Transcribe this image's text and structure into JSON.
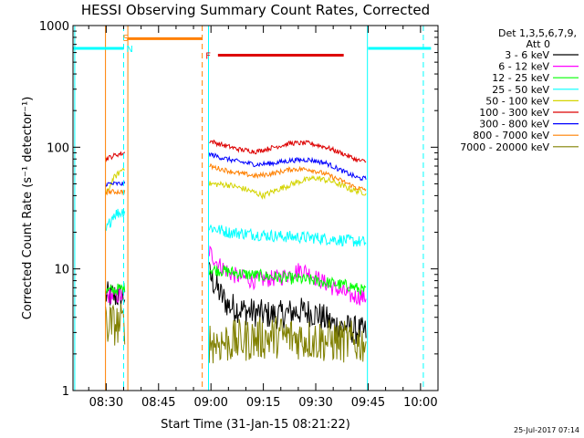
{
  "chart_data": {
    "type": "line",
    "title": "HESSI Observing Summary Count Rates, Corrected",
    "xlabel": "Start Time (31-Jan-15 08:21:22)",
    "ylabel": "Corrected Count Rate (s⁻¹ detector⁻¹)",
    "y_scale": "log",
    "ylim": [
      1,
      1000
    ],
    "xlim_minutes_after_0830": [
      -9.5,
      95
    ],
    "y_tick_labels": [
      "1",
      "10",
      "100",
      "1000"
    ],
    "x_tick_labels": [
      "08:30",
      "08:45",
      "09:00",
      "09:15",
      "09:30",
      "09:45",
      "10:00"
    ],
    "legend": {
      "position": "top-right",
      "header_lines": [
        "Det 1,3,5,6,7,9,",
        "Att 0"
      ],
      "entries": [
        {
          "label": "3 - 6 keV",
          "color": "#000000"
        },
        {
          "label": "6 - 12 keV",
          "color": "#ff00ff"
        },
        {
          "label": "12 - 25 keV",
          "color": "#00ff00"
        },
        {
          "label": "25 - 50 keV",
          "color": "#00ffff"
        },
        {
          "label": "50 - 100 keV",
          "color": "#d4d400"
        },
        {
          "label": "100 - 300 keV",
          "color": "#dd0000"
        },
        {
          "label": "300 - 800 keV",
          "color": "#0000ff"
        },
        {
          "label": "800 - 7000 keV",
          "color": "#ff8000"
        },
        {
          "label": "7000 - 20000 keV",
          "color": "#808000"
        }
      ]
    },
    "segment_1_x_minutes": [
      -0.2,
      5.5
    ],
    "segment_2_x_minutes": [
      29.5,
      74.5
    ],
    "series": [
      {
        "label_index": 0,
        "color": "#000000",
        "seg1": [
          [
            -0.2,
            6
          ],
          [
            5.5,
            6
          ]
        ],
        "seg2": [
          [
            29.5,
            9
          ],
          [
            31,
            7.5
          ],
          [
            33,
            6
          ],
          [
            35,
            5
          ],
          [
            40,
            4.5
          ],
          [
            46,
            4.2
          ],
          [
            50,
            4.2
          ],
          [
            55,
            4.5
          ],
          [
            60,
            4.3
          ],
          [
            65,
            3.5
          ],
          [
            70,
            3.2
          ],
          [
            74.5,
            3.0
          ]
        ],
        "noise": 0.12
      },
      {
        "label_index": 1,
        "color": "#ff00ff",
        "seg1": [
          [
            -0.2,
            6
          ],
          [
            5.5,
            6
          ]
        ],
        "seg2": [
          [
            29.5,
            14
          ],
          [
            32,
            11
          ],
          [
            36,
            9
          ],
          [
            42,
            8
          ],
          [
            50,
            8.5
          ],
          [
            56,
            10
          ],
          [
            60,
            8.5
          ],
          [
            65,
            7
          ],
          [
            70,
            6
          ],
          [
            74.5,
            5.8
          ]
        ],
        "noise": 0.07
      },
      {
        "label_index": 2,
        "color": "#00ff00",
        "seg1": [
          [
            -0.2,
            6.5
          ],
          [
            5.5,
            7
          ]
        ],
        "seg2": [
          [
            29.5,
            10
          ],
          [
            35,
            9.5
          ],
          [
            40,
            9
          ],
          [
            50,
            8.5
          ],
          [
            60,
            8
          ],
          [
            70,
            7.2
          ],
          [
            74.5,
            6.5
          ]
        ],
        "noise": 0.05
      },
      {
        "label_index": 3,
        "color": "#00ffff",
        "seg1": [
          [
            -0.2,
            20
          ],
          [
            2,
            28
          ],
          [
            5.5,
            30
          ]
        ],
        "seg2": [
          [
            29.5,
            22
          ],
          [
            35,
            20
          ],
          [
            40,
            19.5
          ],
          [
            50,
            18.5
          ],
          [
            60,
            18
          ],
          [
            70,
            17
          ],
          [
            74.5,
            16.5
          ]
        ],
        "noise": 0.05
      },
      {
        "label_index": 4,
        "color": "#d4d400",
        "seg1": [
          [
            -0.2,
            40
          ],
          [
            2,
            55
          ],
          [
            5.5,
            70
          ]
        ],
        "seg2": [
          [
            29.5,
            50
          ],
          [
            35,
            49
          ],
          [
            40,
            45
          ],
          [
            45,
            40
          ],
          [
            50,
            46
          ],
          [
            55,
            52
          ],
          [
            60,
            56
          ],
          [
            65,
            52
          ],
          [
            70,
            45
          ],
          [
            74.5,
            42
          ]
        ],
        "noise": 0.025
      },
      {
        "label_index": 5,
        "color": "#dd0000",
        "seg1": [
          [
            -0.2,
            80
          ],
          [
            3,
            87
          ],
          [
            5.5,
            90
          ]
        ],
        "seg2": [
          [
            29.5,
            113
          ],
          [
            33,
            105
          ],
          [
            38,
            96
          ],
          [
            43,
            92
          ],
          [
            48,
            100
          ],
          [
            53,
            108
          ],
          [
            58,
            108
          ],
          [
            63,
            100
          ],
          [
            68,
            88
          ],
          [
            72,
            78
          ],
          [
            74.5,
            76
          ]
        ],
        "noise": 0.02
      },
      {
        "label_index": 6,
        "color": "#0000ff",
        "seg1": [
          [
            -0.2,
            50
          ],
          [
            5.5,
            50
          ]
        ],
        "seg2": [
          [
            29.5,
            88
          ],
          [
            33,
            82
          ],
          [
            38,
            76
          ],
          [
            43,
            72
          ],
          [
            48,
            74
          ],
          [
            53,
            78
          ],
          [
            58,
            79
          ],
          [
            63,
            74
          ],
          [
            68,
            63
          ],
          [
            72,
            56
          ],
          [
            74.5,
            55
          ]
        ],
        "noise": 0.02
      },
      {
        "label_index": 7,
        "color": "#ff8000",
        "seg1": [
          [
            -0.2,
            43
          ],
          [
            5.5,
            43
          ]
        ],
        "seg2": [
          [
            29.5,
            70
          ],
          [
            33,
            66
          ],
          [
            38,
            61
          ],
          [
            43,
            58
          ],
          [
            48,
            61
          ],
          [
            53,
            66
          ],
          [
            58,
            66
          ],
          [
            63,
            60
          ],
          [
            68,
            52
          ],
          [
            72,
            46
          ],
          [
            74.5,
            45
          ]
        ],
        "noise": 0.02
      },
      {
        "label_index": 8,
        "color": "#808000",
        "seg1": [
          [
            -0.2,
            3.5
          ],
          [
            5.5,
            3.5
          ]
        ],
        "seg2": [
          [
            29.5,
            2.5
          ],
          [
            35,
            2.5
          ],
          [
            40,
            2.6
          ],
          [
            50,
            2.8
          ],
          [
            60,
            2.6
          ],
          [
            70,
            2.5
          ],
          [
            74.5,
            2.5
          ]
        ],
        "noise": 0.18
      }
    ],
    "annotations": {
      "letters": [
        {
          "text": "S",
          "x": 5.8,
          "y": 800,
          "color": "#ff8000"
        },
        {
          "text": "N",
          "x": 6.8,
          "y": 650,
          "color": "#00ffff"
        },
        {
          "text": "F",
          "x": 29.5,
          "y": 570,
          "color": "#dd0000"
        }
      ],
      "horizontal_bars": [
        {
          "x1": -9.5,
          "x2": 5.0,
          "y": 650,
          "color": "#00ffff",
          "dash": false
        },
        {
          "x1": 6.2,
          "x2": 27.5,
          "y": 780,
          "color": "#ff8000",
          "dash": false
        },
        {
          "x1": 32,
          "x2": 68,
          "y": 570,
          "color": "#dd0000",
          "dash": false
        },
        {
          "x1": 75,
          "x2": 93,
          "y": 650,
          "color": "#00ffff",
          "dash": false
        }
      ],
      "vertical_lines": [
        {
          "x": -9.0,
          "color": "#00ffff",
          "dash": false
        },
        {
          "x": -0.2,
          "color": "#ff8000",
          "dash": false
        },
        {
          "x": 5.0,
          "color": "#00ffff",
          "dash": true
        },
        {
          "x": 6.2,
          "color": "#ff8000",
          "dash": false
        },
        {
          "x": 27.5,
          "color": "#ff8000",
          "dash": true
        },
        {
          "x": 29.3,
          "color": "#00ffff",
          "dash": false
        },
        {
          "x": 74.8,
          "color": "#00ffff",
          "dash": false
        },
        {
          "x": 90.8,
          "color": "#00ffff",
          "dash": true
        }
      ]
    }
  },
  "footer": {
    "timestamp": "25-Jul-2017 07:14"
  }
}
